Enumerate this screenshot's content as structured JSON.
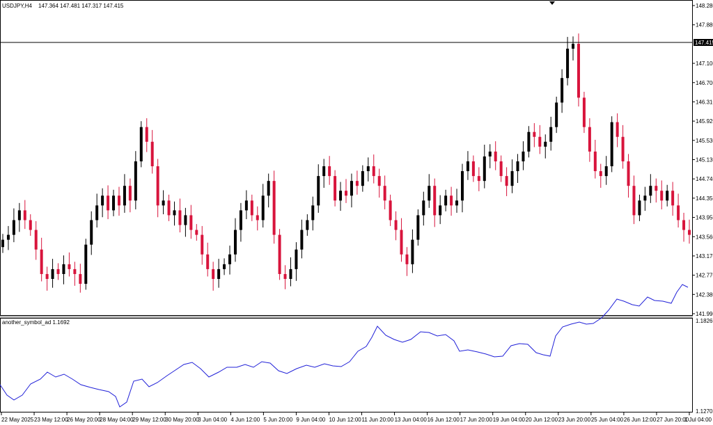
{
  "header": {
    "symbol_label": "USDJPY,H4",
    "ohlc_label": "147.364 147.481 147.317 147.415"
  },
  "indicator": {
    "label": "another_symbol_ad 1.1692",
    "axis_top": "1.1826",
    "axis_bottom": "1.1270",
    "ylim": [
      1.127,
      1.1826
    ],
    "line_color": "#2020d8"
  },
  "colors": {
    "bull": "#000000",
    "bear": "#d8143c",
    "grid_border": "#000000",
    "price_badge_bg": "#000000",
    "price_badge_fg": "#ffffff"
  },
  "price_axis": {
    "ticks": [
      "148.280",
      "147.880",
      "147.415",
      "147.100",
      "146.700",
      "146.310",
      "145.920",
      "145.530",
      "145.130",
      "144.740",
      "144.350",
      "143.950",
      "143.560",
      "143.170",
      "142.770",
      "142.380",
      "141.990"
    ],
    "current_price": "147.415"
  },
  "time_axis": {
    "labels": [
      "22 May 2025",
      "23 May 12:00",
      "26 May 20:00",
      "28 May 04:00",
      "29 May 12:00",
      "30 May 20:00",
      "3 Jun 04:00",
      "4 Jun 12:00",
      "5 Jun 20:00",
      "9 Jun 04:00",
      "10 Jun 12:00",
      "11 Jun 20:00",
      "13 Jun 04:00",
      "16 Jun 12:00",
      "17 Jun 20:00",
      "19 Jun 04:00",
      "20 Jun 12:00",
      "23 Jun 20:00",
      "25 Jun 04:00",
      "26 Jun 12:00",
      "27 Jun 20:00",
      "1 Jul 04:00"
    ]
  },
  "chart_data": {
    "type": "candlestick",
    "price_ylim": [
      141.99,
      148.28
    ],
    "current_price": 147.415,
    "candles_note_close": [
      143.5,
      143.6,
      143.9,
      144.1,
      143.9,
      143.7,
      143.3,
      142.8,
      142.7,
      142.9,
      142.8,
      143.0,
      142.9,
      142.8,
      142.6,
      143.4,
      143.9,
      144.2,
      144.4,
      144.1,
      144.4,
      144.2,
      144.6,
      144.3,
      145.1,
      145.8,
      145.5,
      145.0,
      144.2,
      144.3,
      144.0,
      144.1,
      143.8,
      144.0,
      143.7,
      143.6,
      143.2,
      142.9,
      142.7,
      142.9,
      143.0,
      143.2,
      143.7,
      144.1,
      144.3,
      144.0,
      143.9,
      144.4,
      144.7,
      143.6,
      142.8,
      142.7,
      142.9,
      143.3,
      143.7,
      143.9,
      144.2,
      144.8,
      145.0,
      144.8,
      144.3,
      144.5,
      144.4,
      144.7,
      144.6,
      144.9,
      145.0,
      144.8,
      144.6,
      144.3,
      143.9,
      143.7,
      143.2,
      143.0,
      143.5,
      144.0,
      144.3,
      144.6,
      144.0,
      144.2,
      144.4,
      144.2,
      144.3,
      144.9,
      145.1,
      144.8,
      144.7,
      145.2,
      145.3,
      145.1,
      144.8,
      144.6,
      144.9,
      145.1,
      145.3,
      145.7,
      145.6,
      145.4,
      145.5,
      145.8,
      146.3,
      146.8,
      147.4,
      147.5,
      146.4,
      145.8,
      145.3,
      144.9,
      144.8,
      145.0,
      145.9,
      145.6,
      145.1,
      144.6,
      144.0,
      144.3,
      144.4,
      144.6,
      144.5,
      144.3,
      144.5,
      144.2,
      143.9,
      143.7,
      143.6
    ]
  }
}
